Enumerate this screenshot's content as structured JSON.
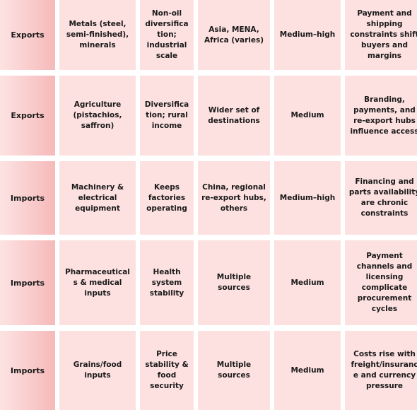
{
  "colors": {
    "cell_background": "#fde0e0",
    "type_cell_gradient_start": "#fde3e3",
    "type_cell_gradient_end": "#f6b9b9",
    "text": "#1a1a1a"
  },
  "rows": [
    {
      "flow": "Exports",
      "category": "Metals (steel, semi-finished), minerals",
      "role": "Non-oil diversification; industrial scale",
      "partners": "Asia, MENA, Africa (varies)",
      "exposure": "Medium–high",
      "constraints": "Payment and shipping constraints shift buyers and margins"
    },
    {
      "flow": "Exports",
      "category": "Agriculture (pistachios, saffron)",
      "role": "Diversification; rural income",
      "partners": "Wider set of destinations",
      "exposure": "Medium",
      "constraints": "Branding, payments, and re-export hubs influence access"
    },
    {
      "flow": "Imports",
      "category": "Machinery & electrical equipment",
      "role": "Keeps factories operating",
      "partners": "China, regional re-export hubs, others",
      "exposure": "Medium–high",
      "constraints": "Financing and parts availability are chronic constraints"
    },
    {
      "flow": "Imports",
      "category": "Pharmaceuticals & medical inputs",
      "role": "Health system stability",
      "partners": "Multiple sources",
      "exposure": "Medium",
      "constraints": "Payment channels and licensing complicate procurement cycles"
    },
    {
      "flow": "Imports",
      "category": "Grains/food inputs",
      "role": "Price stability & food security",
      "partners": "Multiple sources",
      "exposure": "Medium",
      "constraints": "Costs rise with freight/insurance and currency pressure"
    }
  ]
}
